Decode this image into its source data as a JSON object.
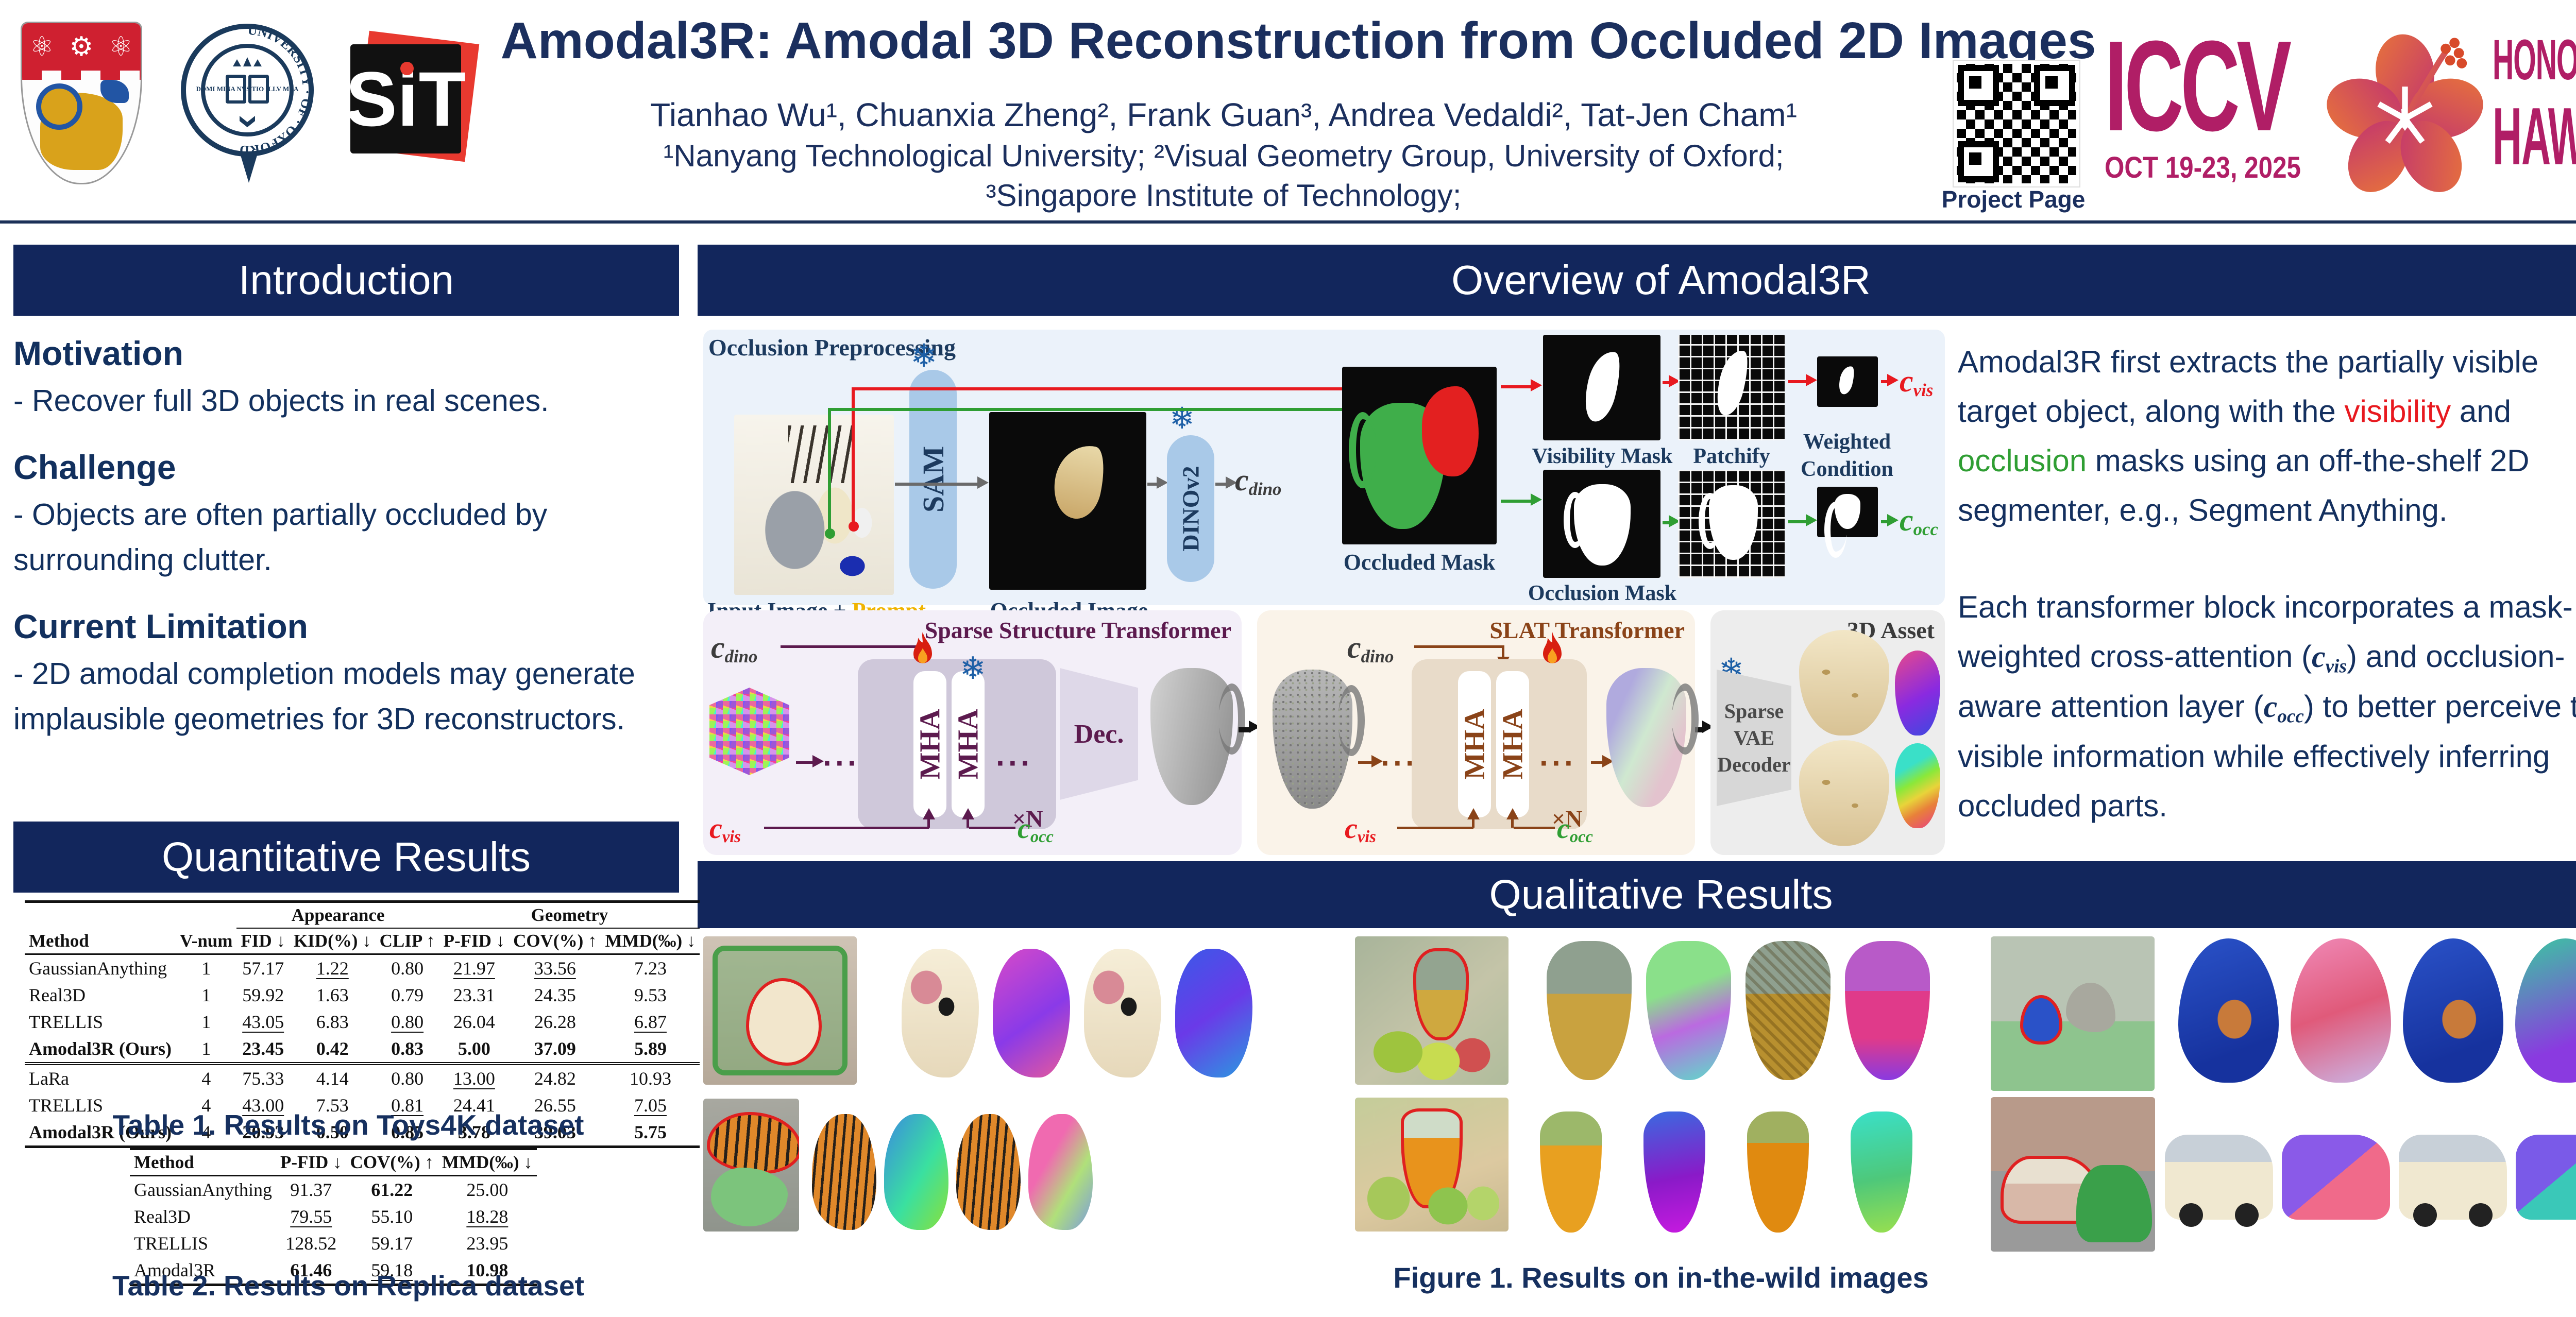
{
  "header": {
    "title": "Amodal3R: Amodal 3D Reconstruction from Occluded 2D Images",
    "authors": "Tianhao Wu¹, Chuanxia Zheng², Frank Guan³, Andrea Vedaldi², Tat-Jen Cham¹",
    "affiliation_line1": "¹Nanyang Technological University; ²Visual Geometry Group, University of Oxford;",
    "affiliation_line2": "³Singapore Institute of Technology;",
    "project_page": "Project Page",
    "sit": {
      "s": "S",
      "i": "i",
      "t": "T"
    },
    "oxford_ring_text": "UNIVERSITY · OF · OXFORD",
    "oxford_book_text": "DOMI MINA NVS TIO ILLV MEA",
    "iccv": {
      "acronym": "ICCV",
      "dates": "OCT 19-23, 2025",
      "city": "HONOLULU",
      "state": "HAWAII"
    }
  },
  "colors": {
    "navy_bar": "#12265c",
    "navy_text": "#16305f",
    "red": "#e8191f",
    "green": "#2f9e33",
    "gold": "#f0b400",
    "magenta": "#b01e66",
    "purple": "#5c1a4e",
    "brown": "#8a4318",
    "sam_blue": "#a9c9e8",
    "pipeline_bg": "#ebf2fa",
    "sst_bg": "#f3eff8",
    "slat_bg": "#faf3e9",
    "asset_bg": "#ededed"
  },
  "introduction": {
    "title": "Introduction",
    "items": [
      {
        "heading": "Motivation",
        "body": " - Recover full 3D objects in real scenes."
      },
      {
        "heading": "Challenge",
        "body": " - Objects are often partially occluded by surrounding clutter."
      },
      {
        "heading": "Current Limitation",
        "body": " - 2D amodal completion models may generate implausible geometries for 3D reconstructors."
      }
    ]
  },
  "quantitative": {
    "title": "Quantitative Results",
    "table1": {
      "caption": "Table 1. Results on Toys4K dataset",
      "col_method": "Method",
      "col_vnum": "V-num",
      "group1": "Appearance",
      "group2": "Geometry",
      "subcols": [
        "FID ↓",
        "KID(%) ↓",
        "CLIP ↑",
        "P-FID ↓",
        "COV(%) ↑",
        "MMD(‰) ↓"
      ],
      "rows": [
        {
          "method": "GaussianAnything",
          "vnum": "1",
          "cells": [
            {
              "t": "57.17"
            },
            {
              "t": "1.22",
              "u": true
            },
            {
              "t": "0.80"
            },
            {
              "t": "21.97",
              "u": true
            },
            {
              "t": "33.56",
              "u": true
            },
            {
              "t": "7.23"
            }
          ]
        },
        {
          "method": "Real3D",
          "vnum": "1",
          "cells": [
            {
              "t": "59.92"
            },
            {
              "t": "1.63"
            },
            {
              "t": "0.79"
            },
            {
              "t": "23.31"
            },
            {
              "t": "24.35"
            },
            {
              "t": "9.53"
            }
          ]
        },
        {
          "method": "TRELLIS",
          "vnum": "1",
          "cells": [
            {
              "t": "43.05",
              "u": true
            },
            {
              "t": "6.83"
            },
            {
              "t": "0.80",
              "u": true
            },
            {
              "t": "26.04"
            },
            {
              "t": "26.28"
            },
            {
              "t": "6.87",
              "u": true
            }
          ]
        },
        {
          "method": "Amodal3R (Ours)",
          "bold": true,
          "vnum": "1",
          "cells": [
            {
              "t": "23.45",
              "b": true
            },
            {
              "t": "0.42",
              "b": true
            },
            {
              "t": "0.83",
              "b": true
            },
            {
              "t": "5.00",
              "b": true
            },
            {
              "t": "37.09",
              "b": true
            },
            {
              "t": "5.89",
              "b": true
            }
          ]
        },
        {
          "method": "LaRa",
          "vnum": "4",
          "sep": true,
          "cells": [
            {
              "t": "75.33"
            },
            {
              "t": "4.14"
            },
            {
              "t": "0.80"
            },
            {
              "t": "13.00",
              "u": true
            },
            {
              "t": "24.82"
            },
            {
              "t": "10.93"
            }
          ]
        },
        {
          "method": "TRELLIS",
          "vnum": "4",
          "cells": [
            {
              "t": "43.00",
              "u": true
            },
            {
              "t": "7.53"
            },
            {
              "t": "0.81",
              "u": true
            },
            {
              "t": "24.41"
            },
            {
              "t": "26.55"
            },
            {
              "t": "7.05",
              "u": true
            }
          ]
        },
        {
          "method": "Amodal3R (Ours)",
          "bold": true,
          "vnum": "4",
          "cells": [
            {
              "t": "20.93",
              "b": true
            },
            {
              "t": "0.50",
              "b": true
            },
            {
              "t": "0.85",
              "b": true
            },
            {
              "t": "3.78",
              "b": true
            },
            {
              "t": "39.03",
              "b": true
            },
            {
              "t": "5.75",
              "b": true
            }
          ]
        }
      ]
    },
    "table2": {
      "caption": "Table 2. Results on Replica dataset",
      "cols": [
        "Method",
        "P-FID ↓",
        "COV(%) ↑",
        "MMD(‰) ↓"
      ],
      "rows": [
        {
          "method": "GaussianAnything",
          "cells": [
            {
              "t": "91.37"
            },
            {
              "t": "61.22",
              "b": true
            },
            {
              "t": "25.00"
            }
          ]
        },
        {
          "method": "Real3D",
          "cells": [
            {
              "t": "79.55",
              "u": true
            },
            {
              "t": "55.10"
            },
            {
              "t": "18.28",
              "u": true
            }
          ]
        },
        {
          "method": "TRELLIS",
          "cells": [
            {
              "t": "128.52"
            },
            {
              "t": "59.17"
            },
            {
              "t": "23.95"
            }
          ]
        },
        {
          "method": "Amodal3R",
          "cells": [
            {
              "t": "61.46",
              "b": true
            },
            {
              "t": "59.18",
              "u": true
            },
            {
              "t": "10.98",
              "b": true
            }
          ]
        }
      ]
    }
  },
  "overview": {
    "title": "Overview of Amodal3R",
    "pipeline": {
      "section_label": "Occlusion Preprocessing",
      "input_label": "Input Image + ",
      "input_prompt": "Prompt",
      "sam": "SAM",
      "occluded_image": "Occluded Image",
      "dinov2": "DINOv2",
      "occluded_mask": "Occluded Mask",
      "visibility_mask": "Visibility Mask",
      "patchify": "Patchify",
      "weighted_l1": "Weighted",
      "weighted_l2": "Condition",
      "occlusion_mask": "Occlusion Mask",
      "c": "c",
      "sub_dino": "dino",
      "sub_vis": "vis",
      "sub_occ": "occ"
    },
    "sst": {
      "title": "Sparse Structure Transformer",
      "mha": "MHA",
      "dots": "···",
      "xn": "×N",
      "dec": "Dec."
    },
    "slat": {
      "title": "SLAT Transformer",
      "mha": "MHA",
      "dots": "···",
      "xn": "×N"
    },
    "asset": {
      "title": "3D Asset",
      "dec1": "Sparse",
      "dec2": "VAE",
      "dec3": "Decoder"
    },
    "snowflake": "❄",
    "para1": [
      {
        "t": "Amodal3R first extracts the partially visible target object, along with the "
      },
      {
        "t": "visibility",
        "c": "red"
      },
      {
        "t": " and "
      },
      {
        "t": "occlusion",
        "c": "green"
      },
      {
        "t": " masks using an off-the-shelf 2D segmenter, e.g., Segment Anything."
      }
    ],
    "para2": [
      {
        "t": "Each transformer block incorporates a mask-weighted cross-attention ("
      },
      {
        "t": "c",
        "math": true
      },
      {
        "t": "vis",
        "sub": true
      },
      {
        "t": ") and occlusion-aware attention layer ("
      },
      {
        "t": "c",
        "math": true
      },
      {
        "t": "occ",
        "sub": true
      },
      {
        "t": ") to better perceive the visible information while effectively inferring occluded parts."
      }
    ]
  },
  "qualitative": {
    "title": "Qualitative Results",
    "caption": "Figure 1. Results on in-the-wild images",
    "groups": [
      {
        "name": "toy-sheep"
      },
      {
        "name": "pineapple"
      },
      {
        "name": "bird"
      },
      {
        "name": "tiger"
      },
      {
        "name": "juice-pitcher"
      },
      {
        "name": "vintage-car"
      }
    ]
  }
}
